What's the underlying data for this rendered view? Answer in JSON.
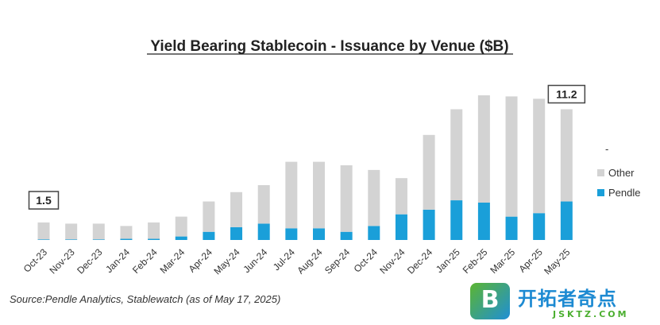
{
  "chart_data": {
    "type": "bar",
    "stacked": true,
    "title": "Yield Bearing Stablecoin - Issuance by Venue ($B)",
    "xlabel": "",
    "ylabel": "",
    "ylim": [
      0,
      13
    ],
    "grid": false,
    "legend_position": "right",
    "categories": [
      "Oct-23",
      "Nov-23",
      "Dec-23",
      "Jan-24",
      "Feb-24",
      "Mar-24",
      "Apr-24",
      "May-24",
      "Jun-24",
      "Jul-24",
      "Aug-24",
      "Sep-24",
      "Oct-24",
      "Nov-24",
      "Dec-24",
      "Jan-25",
      "Feb-25",
      "Mar-25",
      "Apr-25",
      "May-25"
    ],
    "series": [
      {
        "name": "Pendle",
        "color": "#1a9fd9",
        "values": [
          0.05,
          0.05,
          0.05,
          0.1,
          0.1,
          0.3,
          0.7,
          1.1,
          1.4,
          1.0,
          1.0,
          0.7,
          1.2,
          2.2,
          2.6,
          3.4,
          3.2,
          2.0,
          2.3,
          3.3
        ]
      },
      {
        "name": "Other",
        "color": "#d3d3d3",
        "values": [
          1.45,
          1.35,
          1.35,
          1.1,
          1.4,
          1.7,
          2.6,
          3.0,
          3.3,
          5.7,
          5.7,
          5.7,
          4.8,
          3.1,
          6.4,
          7.8,
          9.2,
          10.3,
          9.8,
          7.9
        ]
      }
    ],
    "legend_extra": "-",
    "callouts": [
      {
        "category": "Oct-23",
        "text": "1.5"
      },
      {
        "category": "May-25",
        "text": "11.2"
      }
    ]
  },
  "source": "Source:Pendle Analytics, Stablewatch (as of May 17, 2025)",
  "watermark": {
    "letter": "B",
    "name": "开拓者奇点",
    "url": "JSKTZ.COM"
  }
}
